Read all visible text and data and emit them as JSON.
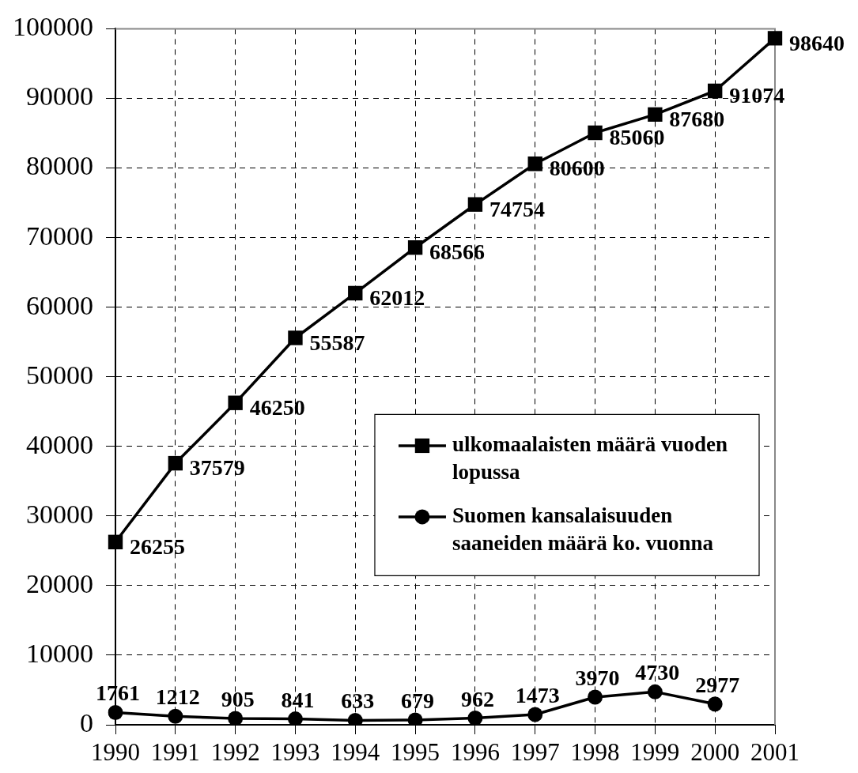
{
  "chart_data": {
    "type": "line",
    "categories": [
      "1990",
      "1991",
      "1992",
      "1993",
      "1994",
      "1995",
      "1996",
      "1997",
      "1998",
      "1999",
      "2000",
      "2001"
    ],
    "series": [
      {
        "name": "ulkomaalaisten määrä vuoden lopussa",
        "color": "#000000",
        "marker": "square",
        "values": [
          26255,
          37579,
          46250,
          55587,
          62012,
          68566,
          74754,
          80600,
          85060,
          87680,
          91074,
          98640
        ]
      },
      {
        "name": "Suomen kansalaisuuden saaneiden määrä ko. vuonna",
        "color": "#000000",
        "marker": "circle",
        "values": [
          1761,
          1212,
          905,
          841,
          633,
          679,
          962,
          1473,
          3970,
          4730,
          2977,
          null
        ]
      }
    ],
    "ylim": [
      0,
      100000
    ],
    "yticks": [
      0,
      10000,
      20000,
      30000,
      40000,
      50000,
      60000,
      70000,
      80000,
      90000,
      100000
    ],
    "grid": true,
    "legend": "right",
    "data_labels": true
  }
}
